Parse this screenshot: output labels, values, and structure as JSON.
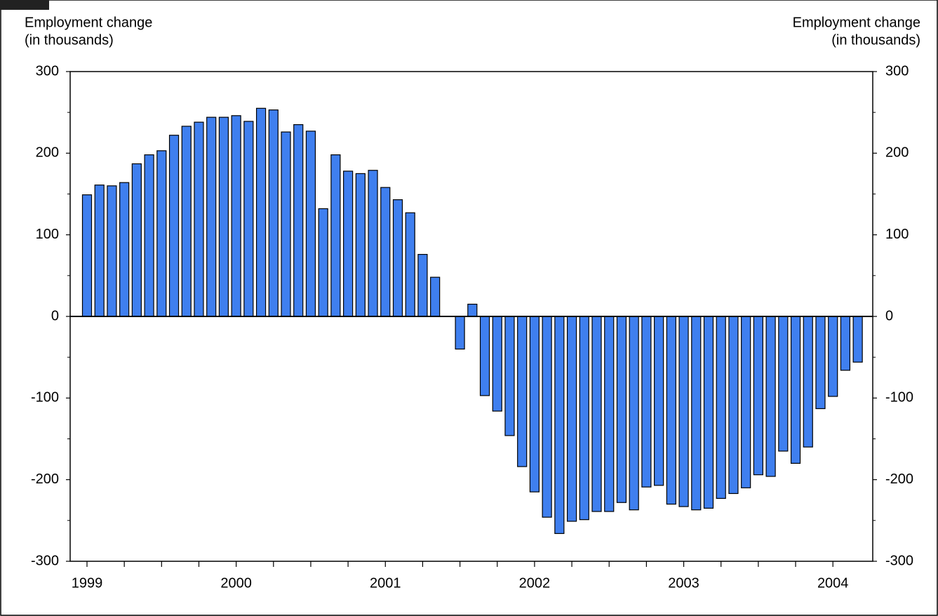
{
  "chart_data": {
    "type": "bar",
    "ylabel": [
      "Employment change",
      "(in thousands)"
    ],
    "y2label": [
      "Employment change",
      "(in thousands)"
    ],
    "categories": [
      "1999",
      null,
      null,
      null,
      null,
      null,
      null,
      null,
      null,
      null,
      null,
      null,
      "2000",
      null,
      null,
      null,
      null,
      null,
      null,
      null,
      null,
      null,
      null,
      null,
      "2001",
      null,
      null,
      null,
      null,
      null,
      null,
      null,
      null,
      null,
      null,
      null,
      "2002",
      null,
      null,
      null,
      null,
      null,
      null,
      null,
      null,
      null,
      null,
      null,
      "2003",
      null,
      null,
      null,
      null,
      null,
      null,
      null,
      null,
      null,
      null,
      null,
      "2004",
      null,
      null
    ],
    "values": [
      149,
      161,
      160,
      164,
      187,
      198,
      203,
      222,
      233,
      238,
      244,
      244,
      246,
      239,
      255,
      253,
      226,
      235,
      227,
      132,
      198,
      178,
      175,
      179,
      158,
      143,
      127,
      76,
      48,
      0,
      -40,
      15,
      -97,
      -116,
      -146,
      -184,
      -215,
      -246,
      -266,
      -251,
      -249,
      -239,
      -239,
      -228,
      -237,
      -209,
      -207,
      -230,
      -233,
      -237,
      -235,
      -223,
      -217,
      -210,
      -194,
      -196,
      -165,
      -180,
      -160,
      -113,
      -98,
      -66,
      -56
    ],
    "color": "#3f7fef",
    "ylim": [
      -300,
      300
    ],
    "yticks": [
      -300,
      -200,
      -100,
      0,
      100,
      200,
      300
    ],
    "y2lim": [
      -300,
      300
    ],
    "y2ticks": [
      -300,
      -200,
      -100,
      0,
      100,
      200,
      300
    ],
    "grid": false
  }
}
